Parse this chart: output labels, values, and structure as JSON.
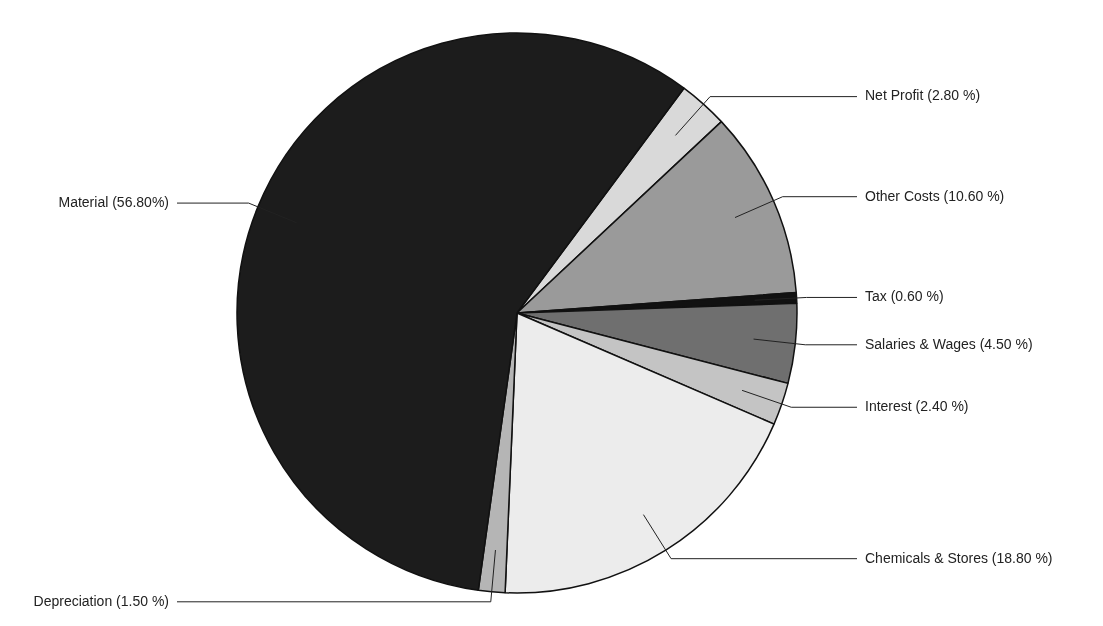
{
  "chart_data": {
    "type": "pie",
    "categories": [
      "Net Profit",
      "Other Costs",
      "Tax",
      "Salaries & Wages",
      "Interest",
      "Chemicals & Stores",
      "Depreciation",
      "Material"
    ],
    "values": [
      2.8,
      10.6,
      0.6,
      4.5,
      2.4,
      18.8,
      1.5,
      56.8
    ],
    "value_labels": [
      "(2.80 %)",
      "(10.60 %)",
      "(0.60 %)",
      "(4.50 %)",
      "(2.40 %)",
      "(18.80 %)",
      "(1.50 %)",
      "(56.80%)"
    ],
    "colors": [
      "#d9d9d9",
      "#9a9a9a",
      "#111111",
      "#6f6f6f",
      "#c4c4c4",
      "#ececec",
      "#b5b5b5",
      "#1c1c1c"
    ],
    "legend": false
  }
}
